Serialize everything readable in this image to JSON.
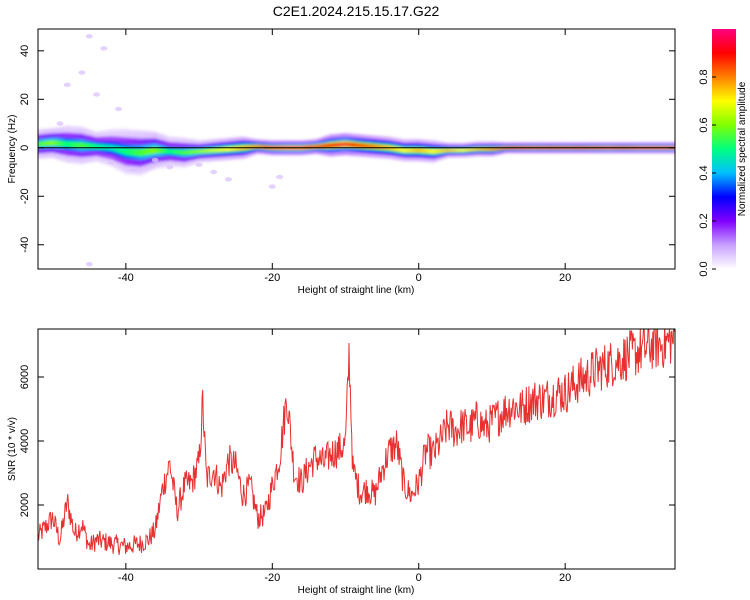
{
  "title": "C2E1.2024.215.15.17.G22",
  "colors": {
    "snr_line": "#e83030",
    "axis": "#000000",
    "background": "#ffffff"
  },
  "colorbar": {
    "label": "Normalized spectral amplitude",
    "ticks": [
      "0.0",
      "0.2",
      "0.4",
      "0.6",
      "0.8"
    ],
    "tick_values": [
      0.0,
      0.2,
      0.4,
      0.6,
      0.8
    ],
    "range": [
      0,
      1
    ],
    "colormap": [
      "#ffffff",
      "#c8a0ff",
      "#8000ff",
      "#0000ff",
      "#00c0ff",
      "#00ff80",
      "#80ff00",
      "#ffff00",
      "#ff8000",
      "#ff0000",
      "#ff0080"
    ]
  },
  "chart_data": [
    {
      "type": "heatmap",
      "xlabel": "Height of straight line (km)",
      "ylabel": "Frequency (Hz)",
      "xlim": [
        -52,
        35
      ],
      "ylim": [
        -50,
        49
      ],
      "xticks": [
        -40,
        -20,
        0,
        20
      ],
      "xtick_labels": [
        "-40",
        "-20",
        "0",
        "20"
      ],
      "yticks": [
        -40,
        -20,
        0,
        20,
        40
      ],
      "ytick_labels": [
        "-40",
        "-20",
        "0",
        "20",
        "40"
      ],
      "reference_line": 0,
      "ridge": {
        "x": [
          -52,
          -50,
          -48,
          -46,
          -44,
          -42,
          -40,
          -38,
          -36,
          -34,
          -32,
          -30,
          -28,
          -26,
          -24,
          -22,
          -20,
          -18,
          -16,
          -14,
          -12,
          -10,
          -8,
          -6,
          -4,
          -2,
          0,
          2,
          4,
          6,
          8,
          10,
          12,
          14,
          16,
          18,
          20,
          22,
          24,
          26,
          28,
          30,
          32,
          35
        ],
        "frequency": [
          1.5,
          2,
          1.5,
          1,
          0.5,
          0,
          -1.5,
          -2,
          -1,
          -1.5,
          -2,
          -1.5,
          -1,
          -0.5,
          0,
          0.5,
          0,
          0,
          0,
          0.5,
          1,
          1.5,
          1,
          0.5,
          0,
          -1,
          -1,
          -1.5,
          -1,
          -1,
          -0.5,
          -0.5,
          0,
          0,
          0,
          0,
          0,
          0,
          0,
          0,
          0,
          0,
          0,
          0
        ],
        "amplitude": [
          0.55,
          0.6,
          0.5,
          0.55,
          0.5,
          0.45,
          0.5,
          0.55,
          0.6,
          0.5,
          0.55,
          0.6,
          0.65,
          0.7,
          0.75,
          0.8,
          0.9,
          0.95,
          0.95,
          0.9,
          0.9,
          0.95,
          0.85,
          0.8,
          0.75,
          0.7,
          0.75,
          0.7,
          0.75,
          0.7,
          0.75,
          0.8,
          0.85,
          0.9,
          0.92,
          0.9,
          0.92,
          0.9,
          0.92,
          0.95,
          0.9,
          0.95,
          0.95,
          0.95
        ],
        "spread": [
          4,
          4,
          5,
          5,
          4,
          5,
          6,
          6,
          5,
          4,
          4,
          3,
          3,
          3,
          3,
          2,
          2,
          2,
          2,
          2,
          3,
          3,
          3,
          3,
          3,
          3,
          3,
          3,
          2,
          2,
          2,
          2,
          1.5,
          1.5,
          1.5,
          1.5,
          1.5,
          1.5,
          1.5,
          1.5,
          1.5,
          1.5,
          1.5,
          1.5
        ]
      },
      "scatter": [
        {
          "x": -45,
          "y": 46
        },
        {
          "x": -43,
          "y": 41
        },
        {
          "x": -46,
          "y": 31
        },
        {
          "x": -48,
          "y": 26
        },
        {
          "x": -44,
          "y": 22
        },
        {
          "x": -49,
          "y": 10
        },
        {
          "x": -41,
          "y": 16
        },
        {
          "x": -34,
          "y": -8
        },
        {
          "x": -36,
          "y": -5
        },
        {
          "x": -30,
          "y": -7
        },
        {
          "x": -28,
          "y": -10
        },
        {
          "x": -26,
          "y": -13
        },
        {
          "x": -20,
          "y": -16
        },
        {
          "x": -19,
          "y": -12
        },
        {
          "x": -39,
          "y": -9
        },
        {
          "x": -42,
          "y": -6
        },
        {
          "x": -45,
          "y": -48
        }
      ]
    },
    {
      "type": "line",
      "xlabel": "Height of straight line (km)",
      "ylabel": "SNR (10 * v/v)",
      "xlim": [
        -52,
        35
      ],
      "ylim": [
        0,
        7500
      ],
      "xticks": [
        -40,
        -20,
        0,
        20
      ],
      "xtick_labels": [
        "-40",
        "-20",
        "0",
        "20"
      ],
      "yticks": [
        2000,
        4000,
        6000
      ],
      "ytick_labels": [
        "2000",
        "4000",
        "6000"
      ],
      "series": [
        {
          "x": [
            -52,
            -50,
            -49,
            -48,
            -47,
            -46,
            -45,
            -44,
            -42,
            -40,
            -38,
            -37,
            -36,
            -35,
            -34,
            -33,
            -32,
            -31,
            -30,
            -29.5,
            -29,
            -28,
            -27,
            -26,
            -25,
            -24,
            -23,
            -22,
            -21,
            -20,
            -19,
            -18,
            -17,
            -16,
            -15,
            -14,
            -13,
            -12,
            -11,
            -10,
            -9.5,
            -9,
            -8,
            -7,
            -6,
            -5,
            -4,
            -3,
            -2,
            -1,
            0,
            1,
            2,
            3,
            4,
            5,
            6,
            7,
            8,
            9,
            10,
            11,
            12,
            13,
            14,
            15,
            16,
            17,
            18,
            19,
            20,
            21,
            22,
            23,
            24,
            25,
            26,
            27,
            28,
            29,
            30,
            31,
            32,
            33,
            34,
            35
          ],
          "y": [
            1000,
            1600,
            900,
            2100,
            1100,
            1400,
            700,
            900,
            800,
            700,
            800,
            900,
            1200,
            2500,
            3300,
            1800,
            2600,
            2700,
            3300,
            5200,
            2800,
            3100,
            2500,
            3400,
            3200,
            2300,
            2600,
            1600,
            1700,
            2600,
            3500,
            5400,
            3000,
            2700,
            3200,
            3500,
            3300,
            3600,
            3700,
            3900,
            6800,
            3100,
            2400,
            2500,
            2300,
            3100,
            3700,
            3900,
            2600,
            2300,
            2700,
            3700,
            3600,
            4000,
            4500,
            4300,
            4500,
            4400,
            4700,
            4400,
            4600,
            4800,
            5000,
            5100,
            5000,
            5200,
            5300,
            5300,
            5400,
            5500,
            5500,
            5700,
            5900,
            6000,
            6200,
            6300,
            6400,
            6500,
            6600,
            6700,
            6800,
            6900,
            7000,
            7000,
            7100,
            7200
          ]
        }
      ]
    }
  ]
}
